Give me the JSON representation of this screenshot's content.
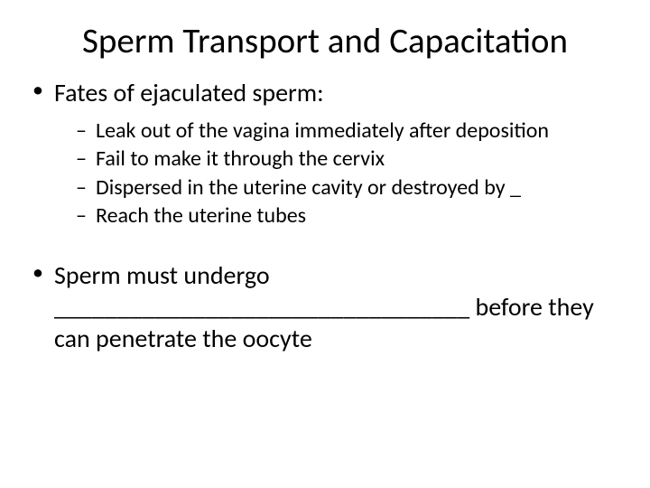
{
  "title": "Sperm Transport and Capacitation",
  "bullets": {
    "b1": "Fates of ejaculated sperm:",
    "b1_subs": {
      "s1": "Leak out of the vagina immediately after deposition",
      "s2": "",
      "s3": "Fail to make it through the cervix",
      "s4": "Dispersed in the uterine cavity or destroyed by _",
      "s5": "Reach the uterine tubes"
    },
    "b2_pre": "Sperm must undergo ",
    "b2_blank": "_________________________________",
    "b2_post": " before they can penetrate the oocyte"
  },
  "colors": {
    "text": "#000000",
    "bg": "#ffffff"
  },
  "fonts": {
    "title_size_pt": 40,
    "body_size_pt": 28,
    "sub_size_pt": 24
  }
}
